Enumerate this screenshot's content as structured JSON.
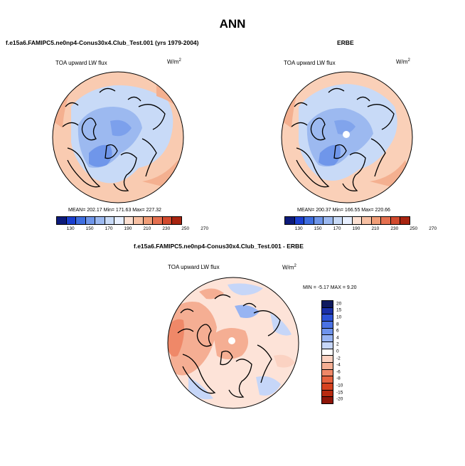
{
  "figure_title": "ANN",
  "palette_abs": [
    "#0c1a7a",
    "#1b3fcf",
    "#3f6ee0",
    "#6f96ea",
    "#9cb9f0",
    "#c8daf7",
    "#e7efff",
    "#fde0d2",
    "#f7c0a3",
    "#f09d77",
    "#e57050",
    "#d24a2e",
    "#a82410"
  ],
  "palette_diff": [
    "#0f1a5e",
    "#1a2fa8",
    "#2d52d6",
    "#4a72e4",
    "#6e93ec",
    "#98b4f2",
    "#c6d6f8",
    "#ffffff",
    "#fbd2c2",
    "#f5ae93",
    "#ef8868",
    "#e6623f",
    "#d6421f",
    "#b82a10",
    "#8e1508"
  ],
  "chart_data": [
    {
      "type": "heatmap",
      "projection": "north polar stereographic",
      "title": "f.e15a6.FAMIPC5.ne0np4-Conus30x4.Club_Test.001 (yrs 1979-2004)",
      "variable": "TOA upward LW flux",
      "units": "W/m",
      "units_exp": "2",
      "stats": {
        "mean": "202.17",
        "min": "171.63",
        "max": "227.32"
      },
      "stats_text": "MEAN= 202.17  Min= 171.63  Max= 227.32",
      "colorbar_ticks": [
        "130",
        "150",
        "170",
        "190",
        "210",
        "230",
        "250",
        "270"
      ]
    },
    {
      "type": "heatmap",
      "projection": "north polar stereographic",
      "title": "ERBE",
      "variable": "TOA upward LW flux",
      "units": "W/m",
      "units_exp": "2",
      "stats": {
        "mean": "200.37",
        "min": "166.55",
        "max": "220.66"
      },
      "stats_text": "MEAN= 200.37  Min= 166.55  Max= 220.66",
      "colorbar_ticks": [
        "130",
        "150",
        "170",
        "190",
        "210",
        "230",
        "250",
        "270"
      ]
    },
    {
      "type": "heatmap",
      "projection": "north polar stereographic",
      "title": "f.e15a6.FAMIPC5.ne0np4-Conus30x4.Club_Test.001 - ERBE",
      "variable": "TOA upward LW flux",
      "units": "W/m",
      "units_exp": "2",
      "stats": {
        "min": "-5.17",
        "max": "9.20"
      },
      "stats_text": "MIN =  -5.17  MAX =   9.20",
      "colorbar_ticks": [
        "20",
        "15",
        "10",
        "8",
        "6",
        "4",
        "2",
        "0",
        "-2",
        "-4",
        "-6",
        "-8",
        "-10",
        "-15",
        "-20"
      ]
    }
  ]
}
